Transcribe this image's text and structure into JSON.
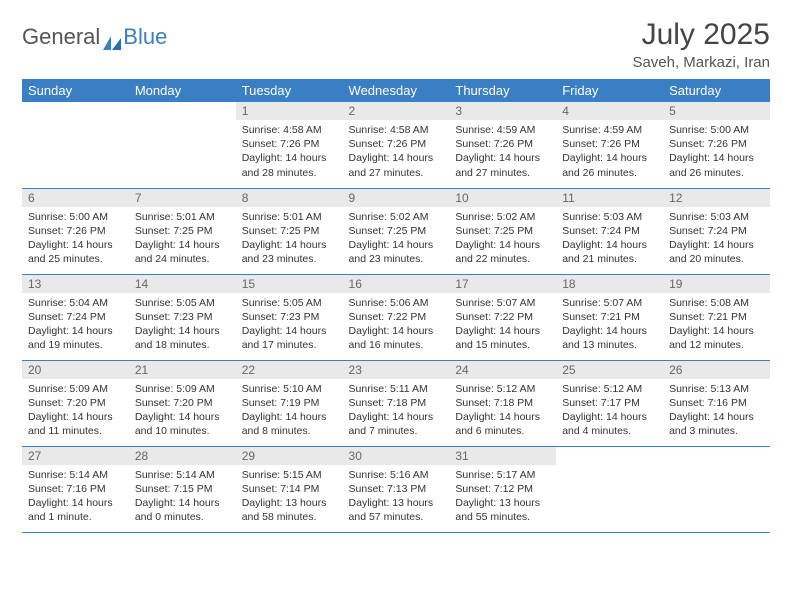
{
  "brand": {
    "part1": "General",
    "part2": "Blue"
  },
  "title": "July 2025",
  "location": "Saveh, Markazi, Iran",
  "colors": {
    "header_bg": "#3a7fc4",
    "header_text": "#ffffff",
    "daynum_bg": "#e9e9e9",
    "daynum_text": "#666666",
    "border": "#3a7fc4",
    "body_text": "#333333"
  },
  "weekdays": [
    "Sunday",
    "Monday",
    "Tuesday",
    "Wednesday",
    "Thursday",
    "Friday",
    "Saturday"
  ],
  "weeks": [
    [
      {
        "n": "",
        "lines": [
          "",
          "",
          "",
          ""
        ]
      },
      {
        "n": "",
        "lines": [
          "",
          "",
          "",
          ""
        ]
      },
      {
        "n": "1",
        "lines": [
          "Sunrise: 4:58 AM",
          "Sunset: 7:26 PM",
          "Daylight: 14 hours",
          "and 28 minutes."
        ]
      },
      {
        "n": "2",
        "lines": [
          "Sunrise: 4:58 AM",
          "Sunset: 7:26 PM",
          "Daylight: 14 hours",
          "and 27 minutes."
        ]
      },
      {
        "n": "3",
        "lines": [
          "Sunrise: 4:59 AM",
          "Sunset: 7:26 PM",
          "Daylight: 14 hours",
          "and 27 minutes."
        ]
      },
      {
        "n": "4",
        "lines": [
          "Sunrise: 4:59 AM",
          "Sunset: 7:26 PM",
          "Daylight: 14 hours",
          "and 26 minutes."
        ]
      },
      {
        "n": "5",
        "lines": [
          "Sunrise: 5:00 AM",
          "Sunset: 7:26 PM",
          "Daylight: 14 hours",
          "and 26 minutes."
        ]
      }
    ],
    [
      {
        "n": "6",
        "lines": [
          "Sunrise: 5:00 AM",
          "Sunset: 7:26 PM",
          "Daylight: 14 hours",
          "and 25 minutes."
        ]
      },
      {
        "n": "7",
        "lines": [
          "Sunrise: 5:01 AM",
          "Sunset: 7:25 PM",
          "Daylight: 14 hours",
          "and 24 minutes."
        ]
      },
      {
        "n": "8",
        "lines": [
          "Sunrise: 5:01 AM",
          "Sunset: 7:25 PM",
          "Daylight: 14 hours",
          "and 23 minutes."
        ]
      },
      {
        "n": "9",
        "lines": [
          "Sunrise: 5:02 AM",
          "Sunset: 7:25 PM",
          "Daylight: 14 hours",
          "and 23 minutes."
        ]
      },
      {
        "n": "10",
        "lines": [
          "Sunrise: 5:02 AM",
          "Sunset: 7:25 PM",
          "Daylight: 14 hours",
          "and 22 minutes."
        ]
      },
      {
        "n": "11",
        "lines": [
          "Sunrise: 5:03 AM",
          "Sunset: 7:24 PM",
          "Daylight: 14 hours",
          "and 21 minutes."
        ]
      },
      {
        "n": "12",
        "lines": [
          "Sunrise: 5:03 AM",
          "Sunset: 7:24 PM",
          "Daylight: 14 hours",
          "and 20 minutes."
        ]
      }
    ],
    [
      {
        "n": "13",
        "lines": [
          "Sunrise: 5:04 AM",
          "Sunset: 7:24 PM",
          "Daylight: 14 hours",
          "and 19 minutes."
        ]
      },
      {
        "n": "14",
        "lines": [
          "Sunrise: 5:05 AM",
          "Sunset: 7:23 PM",
          "Daylight: 14 hours",
          "and 18 minutes."
        ]
      },
      {
        "n": "15",
        "lines": [
          "Sunrise: 5:05 AM",
          "Sunset: 7:23 PM",
          "Daylight: 14 hours",
          "and 17 minutes."
        ]
      },
      {
        "n": "16",
        "lines": [
          "Sunrise: 5:06 AM",
          "Sunset: 7:22 PM",
          "Daylight: 14 hours",
          "and 16 minutes."
        ]
      },
      {
        "n": "17",
        "lines": [
          "Sunrise: 5:07 AM",
          "Sunset: 7:22 PM",
          "Daylight: 14 hours",
          "and 15 minutes."
        ]
      },
      {
        "n": "18",
        "lines": [
          "Sunrise: 5:07 AM",
          "Sunset: 7:21 PM",
          "Daylight: 14 hours",
          "and 13 minutes."
        ]
      },
      {
        "n": "19",
        "lines": [
          "Sunrise: 5:08 AM",
          "Sunset: 7:21 PM",
          "Daylight: 14 hours",
          "and 12 minutes."
        ]
      }
    ],
    [
      {
        "n": "20",
        "lines": [
          "Sunrise: 5:09 AM",
          "Sunset: 7:20 PM",
          "Daylight: 14 hours",
          "and 11 minutes."
        ]
      },
      {
        "n": "21",
        "lines": [
          "Sunrise: 5:09 AM",
          "Sunset: 7:20 PM",
          "Daylight: 14 hours",
          "and 10 minutes."
        ]
      },
      {
        "n": "22",
        "lines": [
          "Sunrise: 5:10 AM",
          "Sunset: 7:19 PM",
          "Daylight: 14 hours",
          "and 8 minutes."
        ]
      },
      {
        "n": "23",
        "lines": [
          "Sunrise: 5:11 AM",
          "Sunset: 7:18 PM",
          "Daylight: 14 hours",
          "and 7 minutes."
        ]
      },
      {
        "n": "24",
        "lines": [
          "Sunrise: 5:12 AM",
          "Sunset: 7:18 PM",
          "Daylight: 14 hours",
          "and 6 minutes."
        ]
      },
      {
        "n": "25",
        "lines": [
          "Sunrise: 5:12 AM",
          "Sunset: 7:17 PM",
          "Daylight: 14 hours",
          "and 4 minutes."
        ]
      },
      {
        "n": "26",
        "lines": [
          "Sunrise: 5:13 AM",
          "Sunset: 7:16 PM",
          "Daylight: 14 hours",
          "and 3 minutes."
        ]
      }
    ],
    [
      {
        "n": "27",
        "lines": [
          "Sunrise: 5:14 AM",
          "Sunset: 7:16 PM",
          "Daylight: 14 hours",
          "and 1 minute."
        ]
      },
      {
        "n": "28",
        "lines": [
          "Sunrise: 5:14 AM",
          "Sunset: 7:15 PM",
          "Daylight: 14 hours",
          "and 0 minutes."
        ]
      },
      {
        "n": "29",
        "lines": [
          "Sunrise: 5:15 AM",
          "Sunset: 7:14 PM",
          "Daylight: 13 hours",
          "and 58 minutes."
        ]
      },
      {
        "n": "30",
        "lines": [
          "Sunrise: 5:16 AM",
          "Sunset: 7:13 PM",
          "Daylight: 13 hours",
          "and 57 minutes."
        ]
      },
      {
        "n": "31",
        "lines": [
          "Sunrise: 5:17 AM",
          "Sunset: 7:12 PM",
          "Daylight: 13 hours",
          "and 55 minutes."
        ]
      },
      {
        "n": "",
        "lines": [
          "",
          "",
          "",
          ""
        ]
      },
      {
        "n": "",
        "lines": [
          "",
          "",
          "",
          ""
        ]
      }
    ]
  ]
}
